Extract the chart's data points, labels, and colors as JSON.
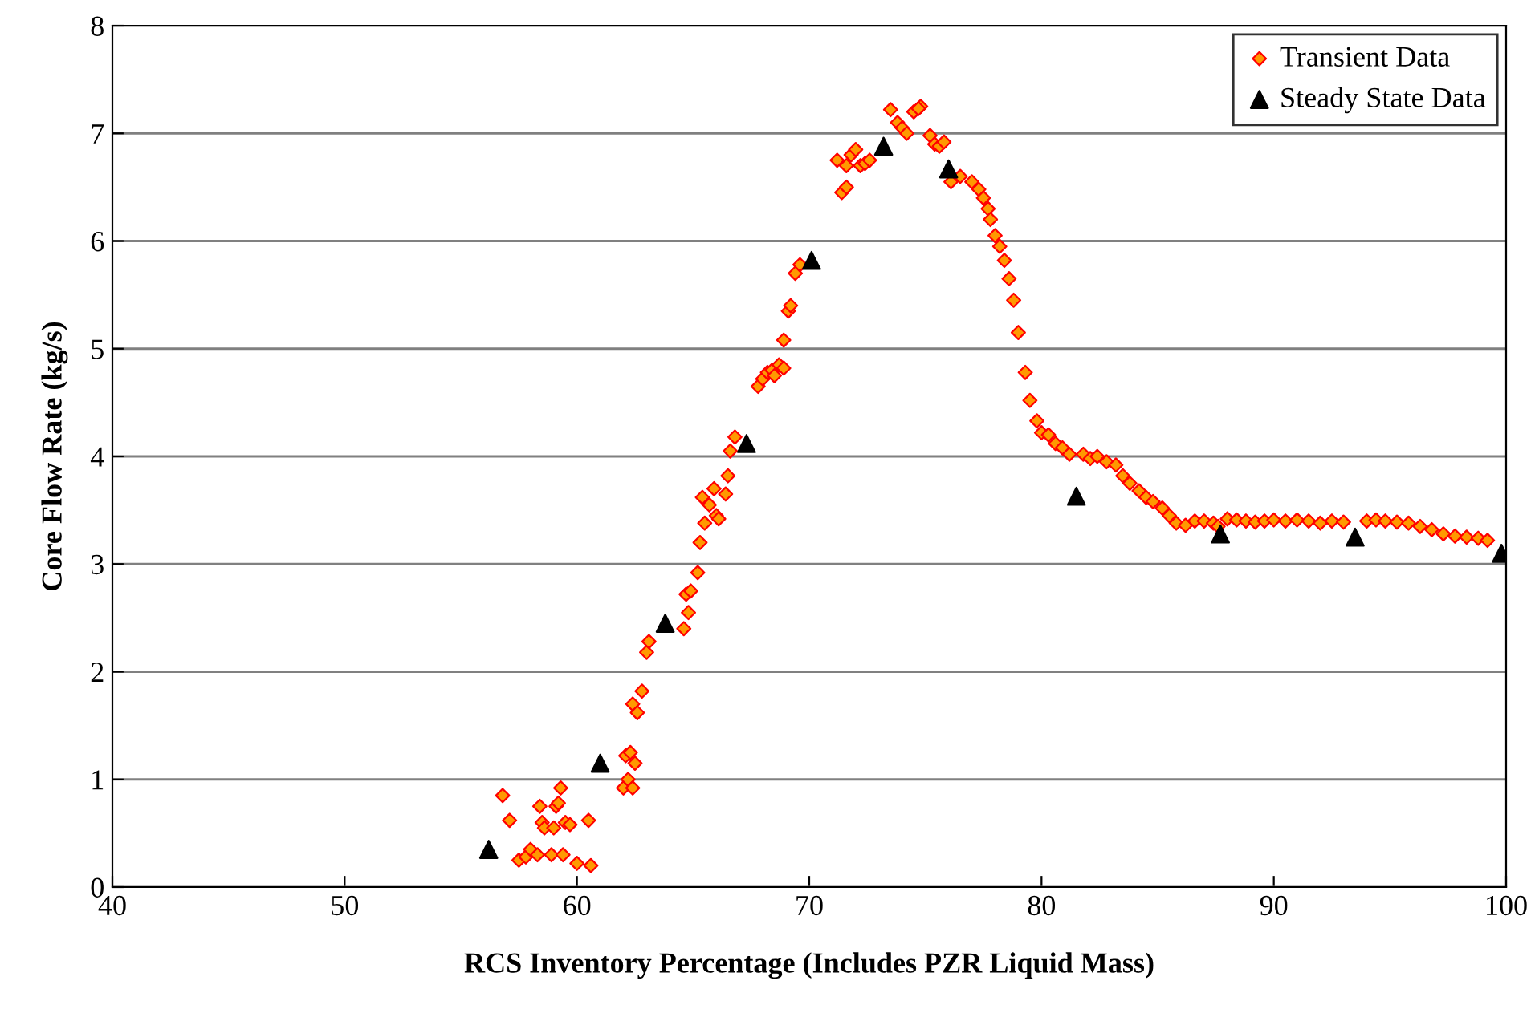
{
  "chart_data": {
    "type": "scatter",
    "xlabel": "RCS Inventory Percentage (Includes PZR Liquid Mass)",
    "ylabel": "Core Flow Rate (kg/s)",
    "xlim": [
      40,
      100
    ],
    "xticks": [
      40,
      50,
      60,
      70,
      80,
      90,
      100
    ],
    "ylim": [
      0,
      8
    ],
    "yticks": [
      0,
      1,
      2,
      3,
      4,
      5,
      6,
      7,
      8
    ],
    "grid": "y",
    "legend": "top right",
    "series": [
      {
        "name": "Transient Data",
        "color": "#ff9900",
        "marker": "diamond",
        "x": [
          56.8,
          57.1,
          57.5,
          57.8,
          58.0,
          58.3,
          58.4,
          58.5,
          58.6,
          58.9,
          59.0,
          59.1,
          59.2,
          59.3,
          59.4,
          59.5,
          59.7,
          60.0,
          60.5,
          60.6,
          62.0,
          62.2,
          62.1,
          62.3,
          62.4,
          62.5,
          62.4,
          62.6,
          62.8,
          63.0,
          63.1,
          64.6,
          64.8,
          64.7,
          64.9,
          65.2,
          65.3,
          65.5,
          65.4,
          65.7,
          65.9,
          66.0,
          66.1,
          66.4,
          66.5,
          66.6,
          66.8,
          67.8,
          68.0,
          68.2,
          68.4,
          68.7,
          68.5,
          68.9,
          68.9,
          69.1,
          69.2,
          69.4,
          69.6,
          71.2,
          71.4,
          71.6,
          71.6,
          71.8,
          72.0,
          72.2,
          72.4,
          72.6,
          73.5,
          73.8,
          74.0,
          74.2,
          74.5,
          74.8,
          74.7,
          75.2,
          75.4,
          75.6,
          75.8,
          76.1,
          76.5,
          77.0,
          77.3,
          77.5,
          77.7,
          77.8,
          78.0,
          78.2,
          78.4,
          78.6,
          78.8,
          79.0,
          79.3,
          79.5,
          79.8,
          80.0,
          80.3,
          80.6,
          80.9,
          81.2,
          81.8,
          82.1,
          82.4,
          82.8,
          83.2,
          83.5,
          83.8,
          84.2,
          84.5,
          84.8,
          85.2,
          85.5,
          85.8,
          86.2,
          86.6,
          87.0,
          87.4,
          87.6,
          88.0,
          88.4,
          88.8,
          89.2,
          89.6,
          90.0,
          90.5,
          91.0,
          91.5,
          92.0,
          92.5,
          93.0,
          94.0,
          94.4,
          94.8,
          95.3,
          95.8,
          96.3,
          96.8,
          97.3,
          97.8,
          98.3,
          98.8,
          99.2
        ],
        "values": [
          0.85,
          0.62,
          0.25,
          0.28,
          0.35,
          0.3,
          0.75,
          0.6,
          0.55,
          0.3,
          0.55,
          0.75,
          0.78,
          0.92,
          0.3,
          0.6,
          0.58,
          0.22,
          0.62,
          0.2,
          0.92,
          1.0,
          1.22,
          1.25,
          0.92,
          1.15,
          1.7,
          1.62,
          1.82,
          2.18,
          2.28,
          2.4,
          2.55,
          2.72,
          2.75,
          2.92,
          3.2,
          3.38,
          3.62,
          3.55,
          3.7,
          3.45,
          3.42,
          3.65,
          3.82,
          4.05,
          4.18,
          4.65,
          4.72,
          4.78,
          4.8,
          4.85,
          4.75,
          4.82,
          5.08,
          5.35,
          5.4,
          5.7,
          5.78,
          6.75,
          6.45,
          6.5,
          6.7,
          6.8,
          6.85,
          6.7,
          6.72,
          6.75,
          7.22,
          7.1,
          7.05,
          7.0,
          7.2,
          7.25,
          7.23,
          6.98,
          6.9,
          6.88,
          6.92,
          6.55,
          6.6,
          6.55,
          6.48,
          6.4,
          6.3,
          6.2,
          6.05,
          5.95,
          5.82,
          5.65,
          5.45,
          5.15,
          4.78,
          4.52,
          4.33,
          4.22,
          4.2,
          4.12,
          4.08,
          4.02,
          4.02,
          3.98,
          4.0,
          3.95,
          3.92,
          3.82,
          3.75,
          3.68,
          3.62,
          3.58,
          3.52,
          3.45,
          3.38,
          3.36,
          3.4,
          3.4,
          3.38,
          3.35,
          3.42,
          3.41,
          3.4,
          3.39,
          3.4,
          3.41,
          3.4,
          3.41,
          3.4,
          3.38,
          3.4,
          3.39,
          3.4,
          3.41,
          3.4,
          3.39,
          3.38,
          3.35,
          3.32,
          3.28,
          3.26,
          3.25,
          3.24,
          3.22
        ]
      },
      {
        "name": "Steady State Data",
        "color": "#000000",
        "marker": "triangle",
        "x": [
          56.2,
          61.0,
          63.8,
          67.3,
          70.1,
          73.2,
          76.0,
          81.5,
          87.7,
          93.5,
          99.8
        ],
        "values": [
          0.35,
          1.15,
          2.45,
          4.12,
          5.82,
          6.88,
          6.67,
          3.63,
          3.28,
          3.25,
          3.1
        ]
      }
    ]
  }
}
